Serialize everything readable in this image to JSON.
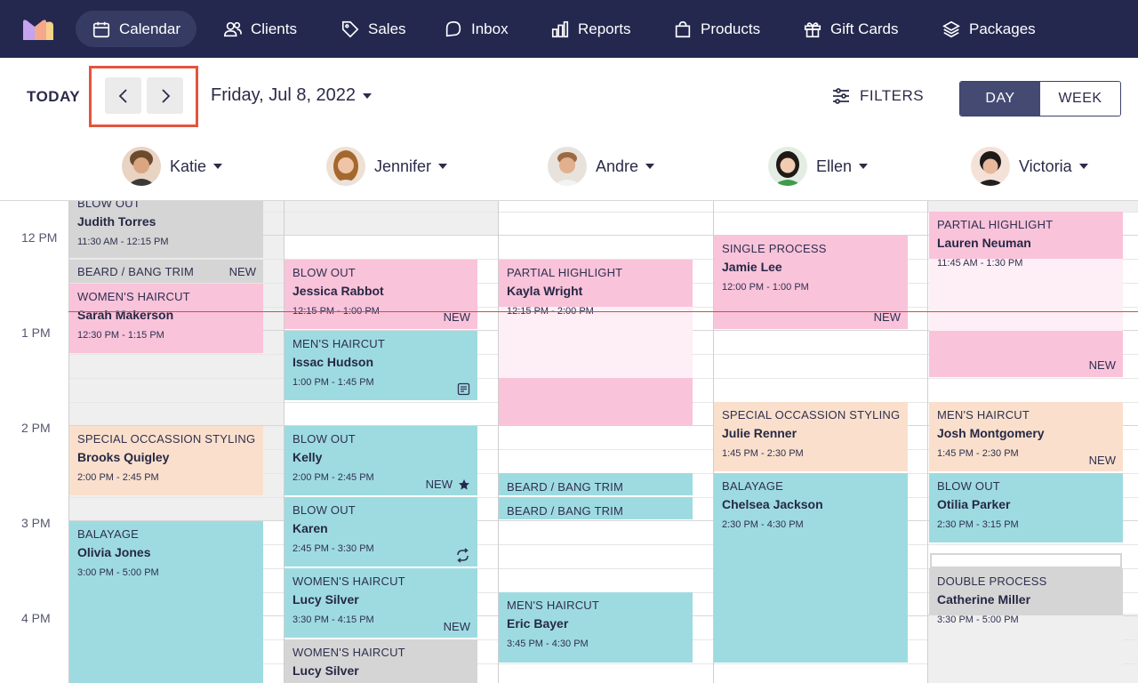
{
  "nav": {
    "items": [
      {
        "label": "Calendar",
        "icon": "calendar-icon",
        "active": true
      },
      {
        "label": "Clients",
        "icon": "users-icon"
      },
      {
        "label": "Sales",
        "icon": "tag-icon"
      },
      {
        "label": "Inbox",
        "icon": "chat-icon"
      },
      {
        "label": "Reports",
        "icon": "bar-chart-icon"
      },
      {
        "label": "Products",
        "icon": "shopping-bag-icon"
      },
      {
        "label": "Gift Cards",
        "icon": "gift-icon"
      },
      {
        "label": "Packages",
        "icon": "layers-icon"
      }
    ]
  },
  "toolbar": {
    "today_label": "TODAY",
    "date_label": "Friday, Jul 8, 2022",
    "filters_label": "FILTERS",
    "view_day": "DAY",
    "view_week": "WEEK",
    "active_view": "DAY"
  },
  "staff": [
    {
      "name": "Katie"
    },
    {
      "name": "Jennifer"
    },
    {
      "name": "Andre"
    },
    {
      "name": "Ellen"
    },
    {
      "name": "Victoria"
    }
  ],
  "times": [
    "12 PM",
    "1 PM",
    "2 PM",
    "3 PM",
    "4 PM"
  ],
  "colors": {
    "nav_bg": "#24284f",
    "pink": "#f9c3da",
    "teal": "#9edbe0",
    "peach": "#fae0cc",
    "grey": "#d5d5d5",
    "now_line": "#e2473b",
    "highlight": "#e2553e"
  },
  "appointments": {
    "katie": [
      {
        "service": "BLOW OUT",
        "client": "Judith Torres",
        "time": "11:30 AM - 12:15 PM"
      },
      {
        "service": "BEARD / BANG TRIM",
        "badge": "NEW"
      },
      {
        "service": "WOMEN'S HAIRCUT",
        "client": "Sarah Makerson",
        "time": "12:30 PM - 1:15 PM"
      },
      {
        "service": "SPECIAL OCCASSION STYLING",
        "client": "Brooks Quigley",
        "time": "2:00 PM - 2:45 PM"
      },
      {
        "service": "BALAYAGE",
        "client": "Olivia Jones",
        "time": "3:00 PM - 5:00 PM"
      }
    ],
    "jennifer": [
      {
        "service": "BLOW OUT",
        "client": "Jessica Rabbot",
        "time": "12:15 PM - 1:00 PM",
        "badge": "NEW"
      },
      {
        "service": "MEN'S HAIRCUT",
        "client": "Issac Hudson",
        "time": "1:00 PM - 1:45 PM",
        "icon": "note-icon"
      },
      {
        "service": "BLOW OUT",
        "client": "Kelly",
        "time": "2:00 PM - 2:45 PM",
        "badge": "NEW",
        "icon": "star-icon"
      },
      {
        "service": "BLOW OUT",
        "client": "Karen",
        "time": "2:45 PM - 3:30 PM",
        "icon": "repeat-icon"
      },
      {
        "service": "WOMEN'S HAIRCUT",
        "client": "Lucy Silver",
        "time": "3:30 PM - 4:15 PM",
        "badge": "NEW"
      },
      {
        "service": "WOMEN'S HAIRCUT",
        "client": "Lucy Silver"
      }
    ],
    "andre": [
      {
        "service": "PARTIAL HIGHLIGHT",
        "client": "Kayla Wright",
        "time": "12:15 PM - 2:00 PM"
      },
      {
        "service": "BEARD / BANG TRIM"
      },
      {
        "service": "BEARD / BANG TRIM"
      },
      {
        "service": "MEN'S HAIRCUT",
        "client": "Eric Bayer",
        "time": "3:45 PM - 4:30 PM"
      }
    ],
    "ellen": [
      {
        "service": "SINGLE PROCESS",
        "client": "Jamie Lee",
        "time": "12:00 PM - 1:00 PM",
        "badge": "NEW"
      },
      {
        "service": "SPECIAL OCCASSION STYLING",
        "client": "Julie Renner",
        "time": "1:45 PM - 2:30 PM"
      },
      {
        "service": "BALAYAGE",
        "client": "Chelsea Jackson",
        "time": "2:30 PM - 4:30 PM"
      }
    ],
    "victoria": [
      {
        "service": "PARTIAL HIGHLIGHT",
        "client": "Lauren Neuman",
        "time": "11:45 AM - 1:30 PM",
        "badge": "NEW"
      },
      {
        "service": "MEN'S HAIRCUT",
        "client": "Josh Montgomery",
        "time": "1:45 PM - 2:30 PM",
        "badge": "NEW"
      },
      {
        "service": "BLOW OUT",
        "client": "Otilia Parker",
        "time": "2:30 PM - 3:15 PM"
      },
      {
        "service": "DOUBLE PROCESS",
        "client": "Catherine Miller",
        "time": "3:30 PM - 5:00 PM"
      }
    ]
  }
}
